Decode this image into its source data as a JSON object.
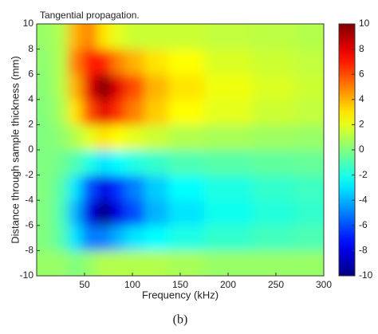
{
  "chart_data": {
    "type": "contour",
    "title": "Tangential propagation.",
    "x_label": "Frequency (kHz)",
    "y_label": "Distance through sample thickness (mm)",
    "caption": "(b)",
    "x": [
      10,
      25,
      40,
      55,
      70,
      85,
      100,
      125,
      150,
      200,
      250,
      290
    ],
    "y": [
      -9,
      -7,
      -5,
      -3,
      -1,
      1,
      3,
      5,
      7,
      9
    ],
    "z": [
      [
        0.5,
        0.5,
        0,
        0.5,
        1,
        1,
        1,
        1,
        0.8,
        0.5,
        0.5,
        0.5
      ],
      [
        0,
        -0.8,
        -3,
        -5,
        -5,
        -4,
        -3,
        -2.5,
        -2,
        -1.5,
        -1.2,
        -1
      ],
      [
        0,
        -1,
        -4,
        -8,
        -10,
        -8,
        -6,
        -4,
        -3,
        -2.2,
        -1.8,
        -1.5
      ],
      [
        0,
        -0.8,
        -3,
        -6,
        -8,
        -6.5,
        -5,
        -3.5,
        -2.5,
        -2,
        -1.5,
        -1.3
      ],
      [
        0,
        -0.3,
        -1,
        -2,
        -3,
        -2.5,
        -2,
        -1.5,
        -1,
        -0.8,
        -0.6,
        -0.5
      ],
      [
        0,
        0.3,
        1,
        2,
        3,
        2.5,
        2,
        1.5,
        1,
        0.8,
        0.6,
        0.5
      ],
      [
        0.1,
        0.8,
        3,
        6,
        8,
        6.5,
        5,
        3.5,
        2.5,
        2,
        1.5,
        1.3
      ],
      [
        0.2,
        1,
        4,
        8,
        10,
        8,
        6,
        4,
        3,
        2.2,
        1.8,
        1.5
      ],
      [
        0.3,
        1,
        5,
        7,
        7,
        5,
        4,
        3,
        2.5,
        1.8,
        1.5,
        1.3
      ],
      [
        0.5,
        1,
        4,
        5,
        3,
        2,
        1.5,
        1.5,
        1.5,
        1.3,
        1.2,
        1
      ]
    ],
    "xlim": [
      0,
      300
    ],
    "xticks": [
      50,
      100,
      150,
      200,
      250,
      300
    ],
    "ylim": [
      -10,
      10
    ],
    "yticks": [
      -10,
      -8,
      -6,
      -4,
      -2,
      0,
      2,
      4,
      6,
      8,
      10
    ],
    "colormap": "jet",
    "clim": [
      -10,
      10
    ],
    "cticks": [
      -10,
      -8,
      -6,
      -4,
      -2,
      0,
      2,
      4,
      6,
      8,
      10
    ]
  }
}
